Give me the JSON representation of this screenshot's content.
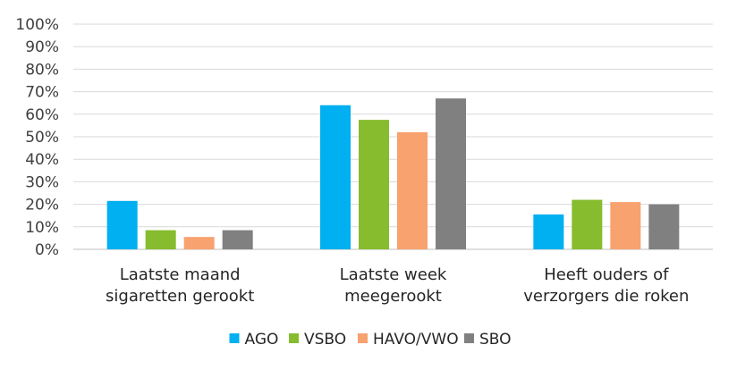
{
  "chart_data": {
    "type": "bar",
    "categories": [
      [
        "Laatste maand",
        "sigaretten gerookt"
      ],
      [
        "Laatste week",
        "meegerookt"
      ],
      [
        "Heeft ouders of",
        "verzorgers die roken"
      ]
    ],
    "series": [
      {
        "name": "AGO",
        "color": "#00B0F0",
        "values": [
          21.5,
          64,
          15.5
        ]
      },
      {
        "name": "VSBO",
        "color": "#86BC2E",
        "values": [
          8.5,
          57.5,
          22
        ]
      },
      {
        "name": "HAVO/VWO",
        "color": "#F8A270",
        "values": [
          5.5,
          52,
          21
        ]
      },
      {
        "name": "SBO",
        "color": "#808080",
        "values": [
          8.5,
          67,
          20
        ]
      }
    ],
    "ylim": [
      0,
      100
    ],
    "yticks": [
      "0%",
      "10%",
      "20%",
      "30%",
      "40%",
      "50%",
      "60%",
      "70%",
      "80%",
      "90%",
      "100%"
    ],
    "grid": true,
    "legend": "bottom"
  }
}
